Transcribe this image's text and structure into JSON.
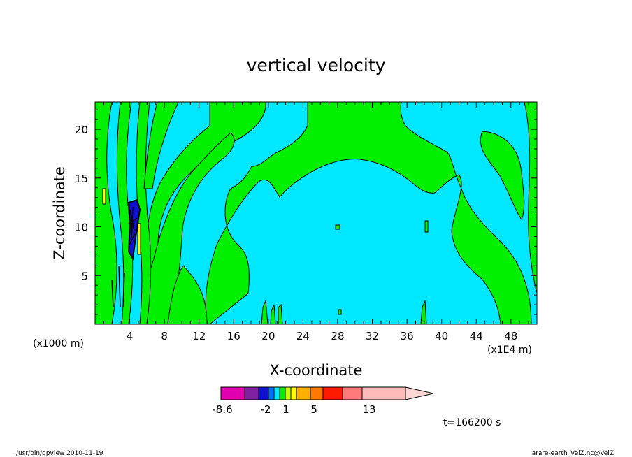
{
  "chart_data": {
    "type": "heatmap",
    "title": "vertical velocity",
    "xlabel": "X-coordinate",
    "ylabel": "Z-coordinate",
    "x_unit_left": "(x1000 m)",
    "x_unit_right": "(x1E4 m)",
    "xlim": [
      0,
      51
    ],
    "ylim": [
      0,
      22.8
    ],
    "xticks": [
      "4",
      "8",
      "12",
      "16",
      "20",
      "24",
      "28",
      "32",
      "36",
      "40",
      "44",
      "48"
    ],
    "yticks": [
      "5",
      "10",
      "15",
      "20"
    ],
    "colorbar": {
      "labels": [
        "-8.6",
        "-2",
        "1",
        "5",
        "13"
      ],
      "colors": [
        "#e000b0",
        "#8020a0",
        "#1010d0",
        "#0070ff",
        "#00e8ff",
        "#00f000",
        "#c8ff00",
        "#ffff00",
        "#ffb000",
        "#ff7a00",
        "#ff1a00",
        "#ff7a7a",
        "#ffbaba"
      ]
    },
    "regions": {
      "background_color": "#00e8ff",
      "updraft_color": "#00f000",
      "upper_dome_center_x": 30,
      "upper_dome_top_z": 17,
      "dome_base_z": 13
    },
    "time_label": "t=166200 s"
  },
  "footer": {
    "left": "/usr/bin/gpview   2010-11-19",
    "right": "arare-earth_VelZ.nc@VelZ"
  }
}
